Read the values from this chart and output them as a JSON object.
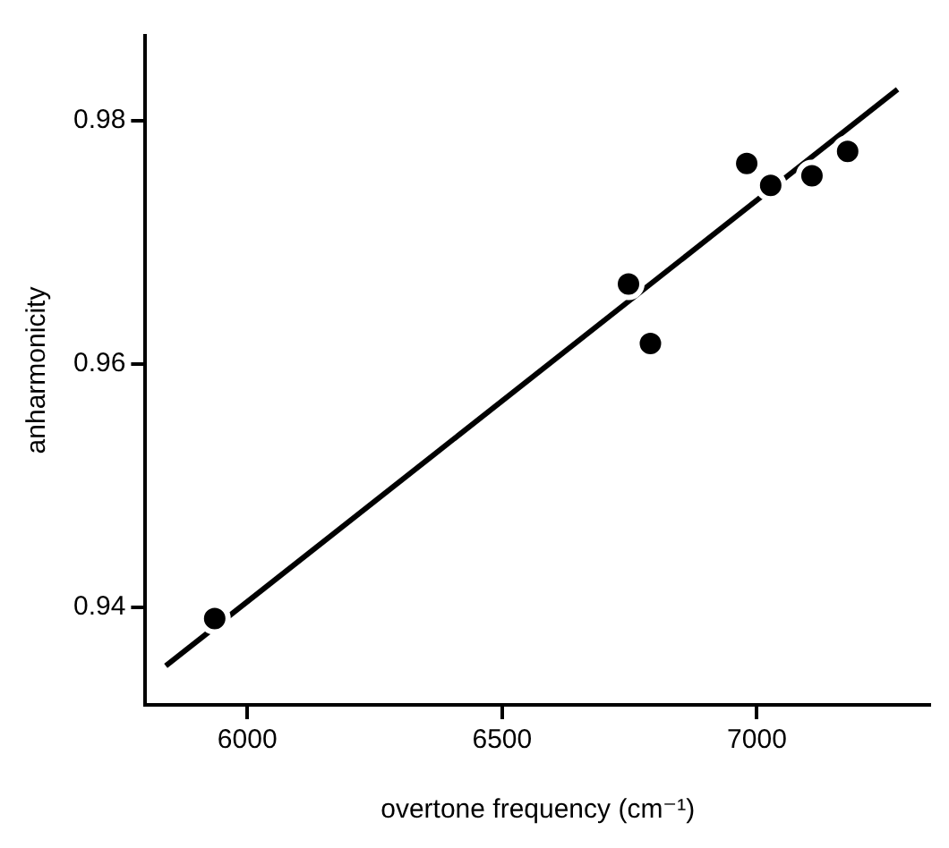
{
  "chart_data": {
    "type": "scatter",
    "xlabel": "overtone frequency (cm⁻¹)",
    "ylabel": "anharmonicity",
    "xlim": [
      5800,
      7340
    ],
    "ylim": [
      0.932,
      0.987
    ],
    "xticks": [
      6000,
      6500,
      7000
    ],
    "yticks": [
      0.94,
      0.96,
      0.98
    ],
    "grid": false,
    "legend": false,
    "marker": "circle",
    "series": [
      {
        "type": "scatter",
        "color": "#000000",
        "x": [
          5936,
          6748,
          6791,
          6980,
          7027,
          7108,
          7178
        ],
        "values": [
          0.9391,
          0.9666,
          0.9617,
          0.9765,
          0.9747,
          0.9755,
          0.9775
        ]
      },
      {
        "type": "line",
        "color": "#000000",
        "marker": "none",
        "line_style": "solid",
        "x": [
          5840,
          7276
        ],
        "values": [
          0.9352,
          0.9826
        ]
      }
    ]
  }
}
